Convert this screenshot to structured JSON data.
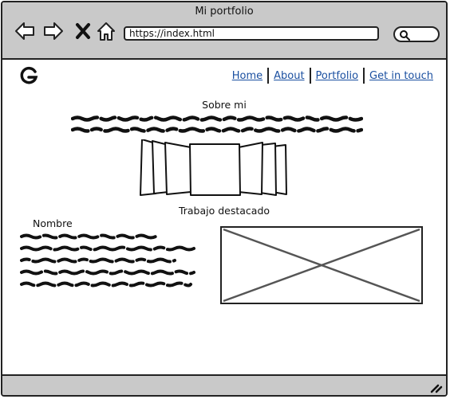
{
  "window": {
    "title": "Mi portfolio"
  },
  "toolbar": {
    "back_icon": "arrow-left-icon",
    "forward_icon": "arrow-right-icon",
    "stop_icon": "close-icon",
    "home_icon": "home-icon",
    "url": "https://index.html",
    "search_icon": "search-icon"
  },
  "nav": {
    "logo_icon": "google-g-icon",
    "links": [
      "Home",
      "About",
      "Portfolio",
      "Get in touch"
    ]
  },
  "about": {
    "heading": "Sobre mi"
  },
  "featured": {
    "heading": "Trabajo destacado",
    "name_label": "Nombre"
  },
  "colors": {
    "chrome": "#c9c9c9",
    "border": "#222222",
    "link": "#1a4fa0"
  }
}
